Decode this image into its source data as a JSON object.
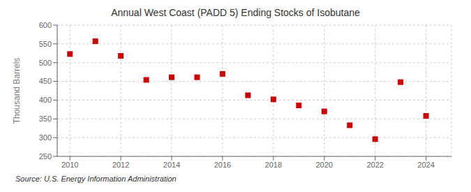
{
  "chart_data": {
    "type": "scatter",
    "title": "Annual West Coast (PADD 5) Ending Stocks of Isobutane",
    "ylabel": "Thousand Barrels",
    "annotations": [
      "Source: U.S. Energy Information Administration"
    ],
    "x": [
      2010,
      2011,
      2012,
      2013,
      2014,
      2015,
      2016,
      2017,
      2018,
      2019,
      2020,
      2021,
      2022,
      2023,
      2024
    ],
    "values": [
      523,
      557,
      518,
      454,
      461,
      461,
      470,
      413,
      402,
      386,
      370,
      333,
      296,
      448,
      358
    ],
    "color": "#cc0000",
    "marker": "square",
    "xlim": [
      2009.5,
      2025.0
    ],
    "xticks": [
      2010,
      2012,
      2014,
      2016,
      2018,
      2020,
      2022,
      2024
    ],
    "ylim": [
      250,
      600
    ],
    "yticks": [
      250,
      300,
      350,
      400,
      450,
      500,
      550,
      600
    ],
    "grid": true
  }
}
